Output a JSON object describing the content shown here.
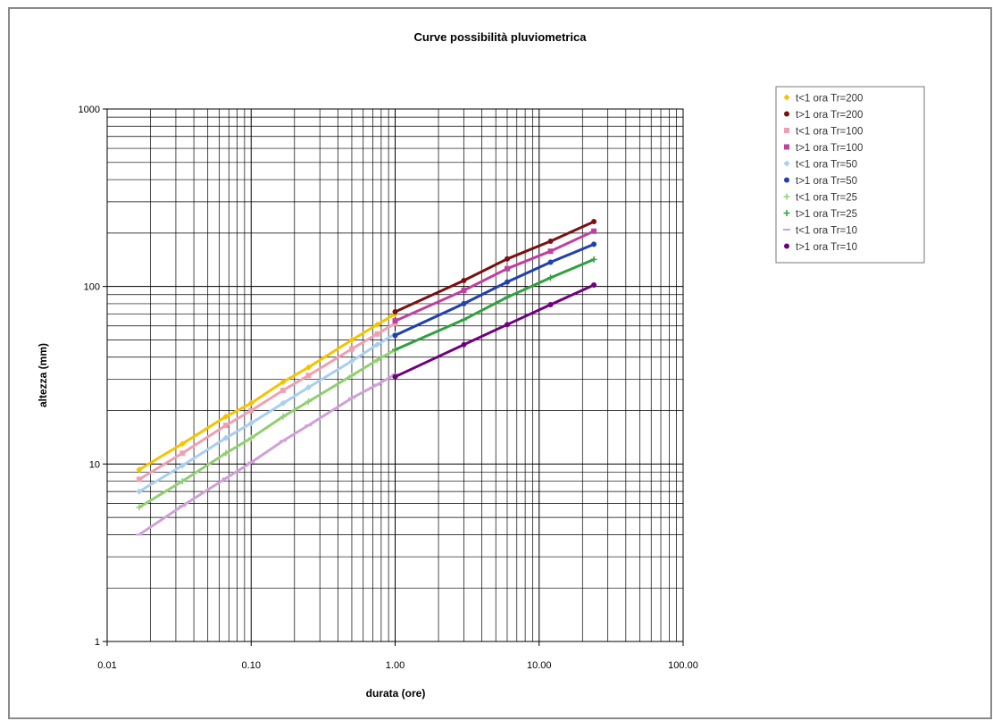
{
  "chart_data": {
    "type": "line",
    "title": "Curve possibilità pluviometrica",
    "xlabel": "durata (ore)",
    "ylabel": "altezza (mm)",
    "x_scale": "log",
    "y_scale": "log",
    "xlim": [
      0.01,
      100
    ],
    "ylim": [
      1,
      1000
    ],
    "x_ticks": [
      "0.01",
      "0.10",
      "1.00",
      "10.00",
      "100.00"
    ],
    "y_ticks": [
      "1",
      "10",
      "100",
      "1000"
    ],
    "grid": true,
    "legend_position": "right",
    "series": [
      {
        "name": "t<1 ora Tr=200",
        "color": "#f5c400",
        "marker": "diamond",
        "x": [
          0.0167,
          0.0333,
          0.0667,
          0.1,
          0.1667,
          0.25,
          0.5,
          0.75,
          1.0
        ],
        "y": [
          9.3,
          13.0,
          18.5,
          22.0,
          29.0,
          35.0,
          50.0,
          61.0,
          70.0
        ]
      },
      {
        "name": "t>1 ora Tr=200",
        "color": "#7a1010",
        "marker": "circle",
        "x": [
          1,
          3,
          6,
          12,
          24
        ],
        "y": [
          72,
          108,
          143,
          180,
          232
        ]
      },
      {
        "name": "t<1 ora Tr=100",
        "color": "#f0a0b0",
        "marker": "square",
        "x": [
          0.0167,
          0.0333,
          0.0667,
          0.1,
          0.1667,
          0.25,
          0.5,
          0.75,
          1.0
        ],
        "y": [
          8.2,
          11.5,
          16.5,
          20.0,
          26.0,
          31.5,
          44.5,
          54.0,
          62.0
        ]
      },
      {
        "name": "t>1 ora Tr=100",
        "color": "#c040a0",
        "marker": "square",
        "x": [
          1,
          3,
          6,
          12,
          24
        ],
        "y": [
          64,
          95,
          126,
          158,
          205
        ]
      },
      {
        "name": "t<1 ora Tr=50",
        "color": "#a8cff0",
        "marker": "diamond",
        "x": [
          0.0167,
          0.0333,
          0.0667,
          0.1,
          0.1667,
          0.25,
          0.5,
          0.75,
          1.0
        ],
        "y": [
          7.0,
          9.8,
          14.0,
          17.0,
          22.0,
          27.0,
          38.0,
          47.0,
          54.0
        ]
      },
      {
        "name": "t>1 ora Tr=50",
        "color": "#2040b0",
        "marker": "circle",
        "x": [
          1,
          3,
          6,
          12,
          24
        ],
        "y": [
          53,
          80,
          106,
          137,
          173
        ]
      },
      {
        "name": "t<1 ora Tr=25",
        "color": "#90d070",
        "marker": "plus",
        "x": [
          0.0167,
          0.0333,
          0.0667,
          0.1,
          0.1667,
          0.25,
          0.5,
          0.75,
          1.0
        ],
        "y": [
          5.7,
          8.0,
          11.5,
          14.0,
          18.5,
          22.5,
          31.5,
          38.5,
          44.0
        ]
      },
      {
        "name": "t>1 ora Tr=25",
        "color": "#30a040",
        "marker": "plus",
        "x": [
          1,
          3,
          6,
          12,
          24
        ],
        "y": [
          44,
          65,
          87,
          112,
          142
        ]
      },
      {
        "name": "t<1 ora Tr=10",
        "color": "#d0a0d8",
        "marker": "dash",
        "x": [
          0.0167,
          0.0333,
          0.0667,
          0.1,
          0.1667,
          0.25,
          0.5,
          0.75,
          1.0
        ],
        "y": [
          4.0,
          5.8,
          8.3,
          10.2,
          13.5,
          16.5,
          23.5,
          28.0,
          32.0
        ]
      },
      {
        "name": "t>1 ora Tr=10",
        "color": "#700080",
        "marker": "circle",
        "x": [
          1,
          3,
          6,
          12,
          24
        ],
        "y": [
          31,
          47,
          61,
          79,
          102
        ]
      }
    ]
  }
}
